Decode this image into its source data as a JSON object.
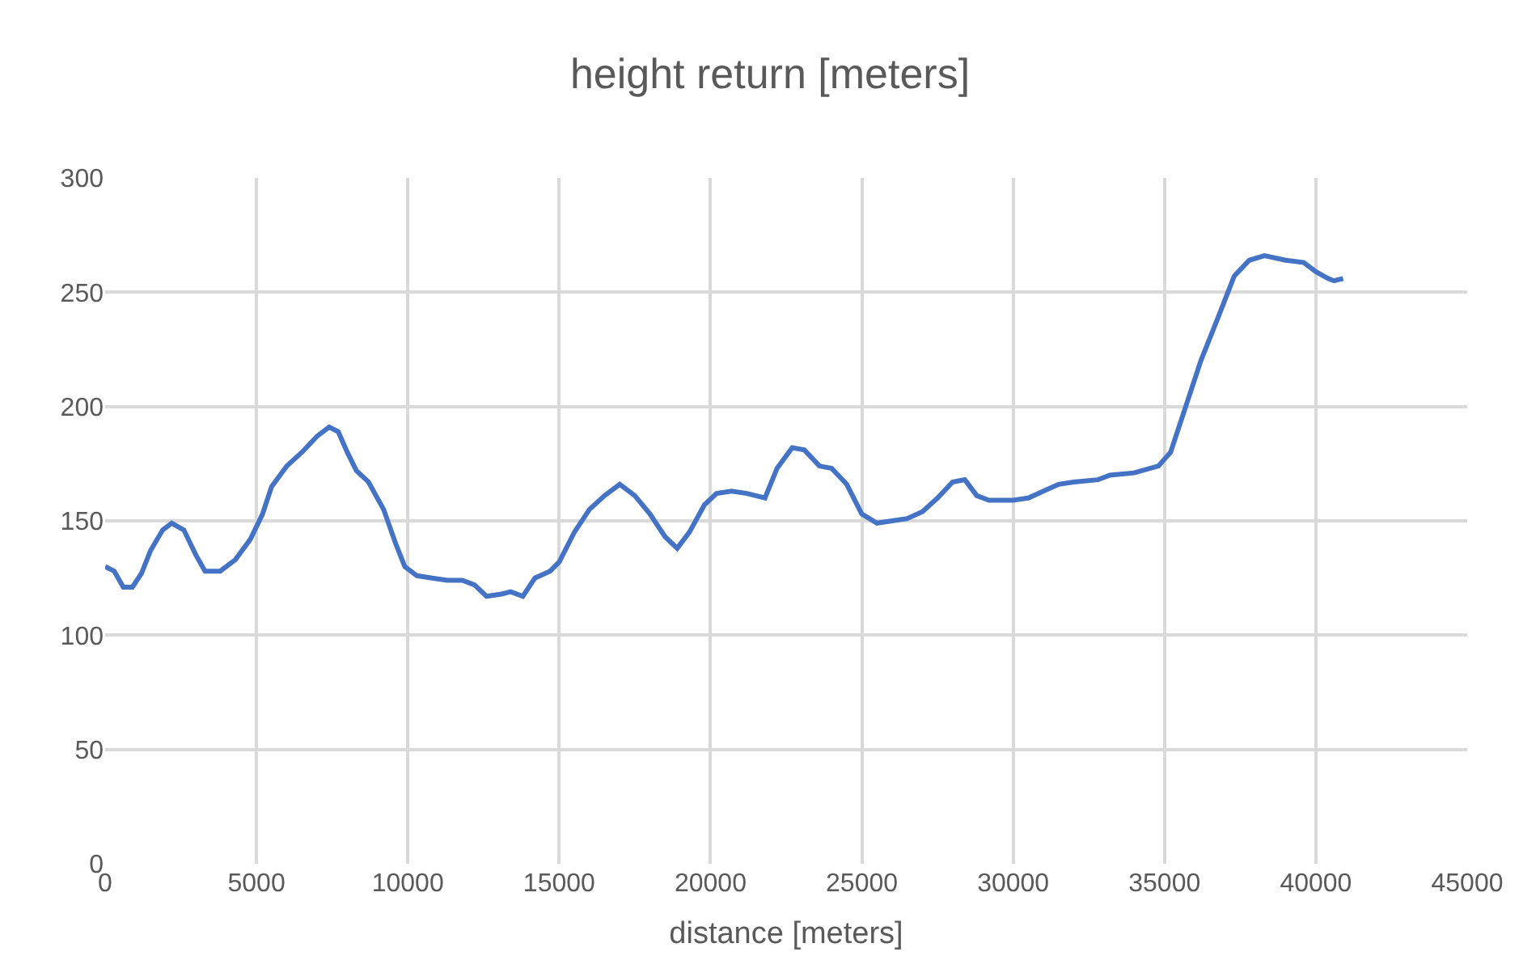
{
  "chart_data": {
    "type": "line",
    "title": "height return [meters]",
    "xlabel": "distance [meters]",
    "x": [
      0,
      300,
      600,
      900,
      1200,
      1500,
      1900,
      2200,
      2600,
      3000,
      3300,
      3800,
      4300,
      4800,
      5200,
      5500,
      6000,
      6500,
      7000,
      7400,
      7700,
      8000,
      8300,
      8700,
      9200,
      9600,
      9900,
      10300,
      10800,
      11300,
      11800,
      12200,
      12600,
      13100,
      13400,
      13800,
      14200,
      14700,
      15000,
      15500,
      16000,
      16500,
      17000,
      17500,
      18000,
      18500,
      18900,
      19300,
      19800,
      20200,
      20700,
      21200,
      21800,
      22200,
      22700,
      23100,
      23600,
      24000,
      24500,
      25000,
      25500,
      26000,
      26500,
      27000,
      27500,
      28000,
      28400,
      28800,
      29200,
      30000,
      30500,
      31000,
      31500,
      32000,
      32800,
      33200,
      34000,
      34800,
      35200,
      35700,
      36200,
      36800,
      37300,
      37800,
      38300,
      39000,
      39600,
      40000,
      40400,
      40600,
      40900
    ],
    "series": [
      {
        "color": "#4472c4",
        "values": [
          130,
          128,
          121,
          121,
          127,
          137,
          146,
          149,
          146,
          135,
          128,
          128,
          133,
          142,
          153,
          165,
          174,
          180,
          187,
          191,
          189,
          180,
          172,
          167,
          155,
          140,
          130,
          126,
          125,
          124,
          124,
          122,
          117,
          118,
          119,
          117,
          125,
          128,
          132,
          145,
          155,
          161,
          166,
          161,
          153,
          143,
          138,
          145,
          157,
          162,
          163,
          162,
          160,
          173,
          182,
          181,
          174,
          173,
          166,
          153,
          149,
          150,
          151,
          154,
          160,
          167,
          168,
          161,
          159,
          159,
          160,
          163,
          166,
          167,
          168,
          170,
          171,
          174,
          180,
          200,
          220,
          240,
          257,
          264,
          266,
          264,
          263,
          259,
          256,
          255,
          256
        ]
      }
    ],
    "xlim": [
      0,
      45000
    ],
    "xticks": [
      0,
      5000,
      10000,
      15000,
      20000,
      25000,
      30000,
      35000,
      40000,
      45000
    ],
    "ylim": [
      0,
      300
    ],
    "yticks": [
      0,
      50,
      100,
      150,
      200,
      250,
      300
    ],
    "grid": true,
    "marker": "none",
    "line_style": "solid"
  }
}
